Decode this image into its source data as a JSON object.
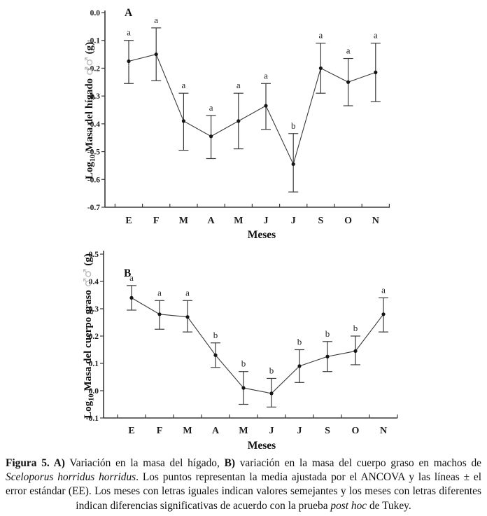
{
  "figure_caption": {
    "segments": [
      {
        "text": "Figura 5. A)",
        "style": "bold"
      },
      {
        "text": " Variación en la masa del hígado, ",
        "style": "normal"
      },
      {
        "text": "B)",
        "style": "bold"
      },
      {
        "text": " variación en la masa del cuerpo graso en machos de ",
        "style": "normal"
      },
      {
        "text": "Sceloporus horridus horridus",
        "style": "italic"
      },
      {
        "text": ". Los puntos representan la media ajustada por el ANCOVA y las líneas ± el error estándar (EE). Los meses con letras iguales indican valores semejantes y los meses con letras diferentes indican diferencias significativas de acuerdo con la prueba ",
        "style": "normal"
      },
      {
        "text": "post hoc",
        "style": "italic"
      },
      {
        "text": " de Tukey.",
        "style": "normal"
      }
    ]
  },
  "chart_data": [
    {
      "id": "A",
      "type": "line",
      "panel_label": "A",
      "title": "",
      "ylabel_parts": [
        {
          "text": "Log",
          "style": "normal"
        },
        {
          "text": "10",
          "style": "sub"
        },
        {
          "text": " Masa del hígado ",
          "style": "normal"
        },
        {
          "text": "♂♂",
          "style": "male"
        },
        {
          "text": " (g)",
          "style": "normal"
        }
      ],
      "xlabel": "Meses",
      "categories": [
        "E",
        "F",
        "M",
        "A",
        "M",
        "J",
        "J",
        "S",
        "O",
        "N"
      ],
      "values": [
        -0.175,
        -0.15,
        -0.39,
        -0.445,
        -0.39,
        -0.335,
        -0.545,
        -0.2,
        -0.25,
        -0.215
      ],
      "err_upper": [
        -0.1,
        -0.055,
        -0.29,
        -0.37,
        -0.29,
        -0.255,
        -0.435,
        -0.11,
        -0.165,
        -0.11
      ],
      "err_lower": [
        -0.255,
        -0.245,
        -0.495,
        -0.525,
        -0.49,
        -0.42,
        -0.645,
        -0.29,
        -0.335,
        -0.32
      ],
      "letters": [
        "a",
        "a",
        "a",
        "a",
        "a",
        "a",
        "b",
        "a",
        "a",
        "a"
      ],
      "ylim": [
        -0.7,
        0.0
      ],
      "ytick_values": [
        0.0,
        -0.1,
        -0.2,
        -0.3,
        -0.4,
        -0.5,
        -0.6,
        -0.7
      ],
      "ytick_labels": [
        "0.0",
        "-0.1",
        "-0.2",
        "-0.3",
        "-0.4",
        "-0.5",
        "-0.6",
        "-0.7"
      ],
      "grid": false,
      "legend": "none"
    },
    {
      "id": "B",
      "type": "line",
      "panel_label": "B",
      "title": "",
      "ylabel_parts": [
        {
          "text": "Log",
          "style": "normal"
        },
        {
          "text": "10",
          "style": "sub"
        },
        {
          "text": " Masa del cuerpo graso ",
          "style": "normal"
        },
        {
          "text": "♂♂",
          "style": "male"
        },
        {
          "text": " (g)",
          "style": "normal"
        }
      ],
      "xlabel": "Meses",
      "categories": [
        "E",
        "F",
        "M",
        "A",
        "M",
        "J",
        "J",
        "S",
        "O",
        "N"
      ],
      "values": [
        0.34,
        0.28,
        0.27,
        0.13,
        0.01,
        -0.01,
        0.09,
        0.125,
        0.145,
        0.28
      ],
      "err_upper": [
        0.385,
        0.33,
        0.33,
        0.175,
        0.07,
        0.045,
        0.15,
        0.18,
        0.2,
        0.34
      ],
      "err_lower": [
        0.295,
        0.225,
        0.215,
        0.085,
        -0.05,
        -0.06,
        0.03,
        0.07,
        0.095,
        0.215
      ],
      "letters": [
        "a",
        "a",
        "a",
        "b",
        "b",
        "b",
        "b",
        "b",
        "b",
        "a"
      ],
      "ylim": [
        -0.1,
        0.5
      ],
      "ytick_values": [
        0.5,
        0.4,
        0.3,
        0.2,
        0.1,
        0.0,
        -0.1
      ],
      "ytick_labels": [
        "0.5",
        "0.4",
        "0.3",
        "0.2",
        "0.1",
        "0.0",
        "-0.1"
      ],
      "grid": false,
      "legend": "none"
    }
  ]
}
